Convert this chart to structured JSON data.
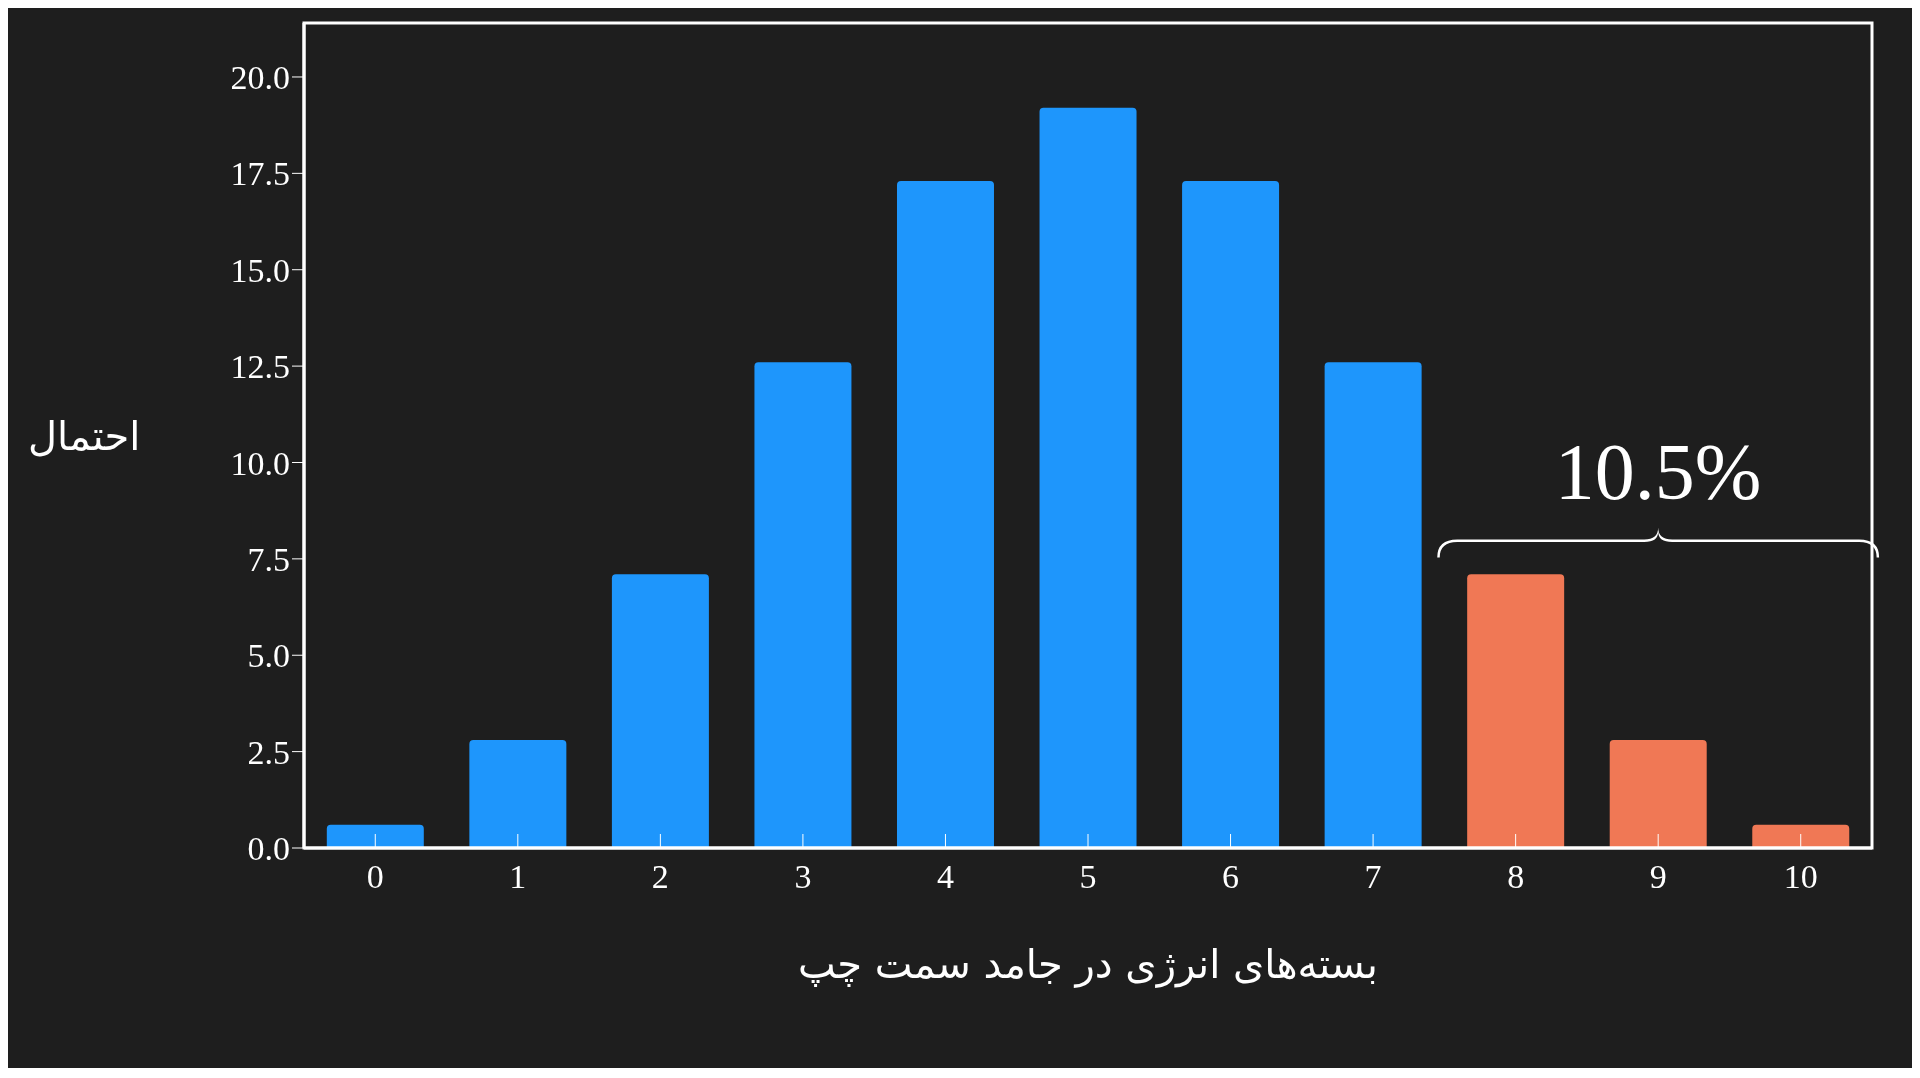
{
  "chart_data": {
    "type": "bar",
    "xlabel": "بسته‌های انرژی در جامد سمت چپ",
    "ylabel": "احتمال",
    "categories": [
      "0",
      "1",
      "2",
      "3",
      "4",
      "5",
      "6",
      "7",
      "8",
      "9",
      "10"
    ],
    "values": [
      0.6,
      2.8,
      7.1,
      12.6,
      17.3,
      19.2,
      17.3,
      12.6,
      7.1,
      2.8,
      0.6
    ],
    "colors": [
      "#1e96fc",
      "#1e96fc",
      "#1e96fc",
      "#1e96fc",
      "#1e96fc",
      "#1e96fc",
      "#1e96fc",
      "#1e96fc",
      "#f07855",
      "#f07855",
      "#f07855"
    ],
    "ylim": [
      0,
      21.4
    ],
    "yticks": [
      {
        "value": 0,
        "label": "0.0"
      },
      {
        "value": 2.5,
        "label": "2.5"
      },
      {
        "value": 5,
        "label": "5.0"
      },
      {
        "value": 7.5,
        "label": "7.5"
      },
      {
        "value": 10,
        "label": "10.0"
      },
      {
        "value": 12.5,
        "label": "12.5"
      },
      {
        "value": 15,
        "label": "15.0"
      },
      {
        "value": 17.5,
        "label": "17.5"
      },
      {
        "value": 20,
        "label": "20.0"
      }
    ],
    "annotations": [
      "10.5%"
    ]
  }
}
